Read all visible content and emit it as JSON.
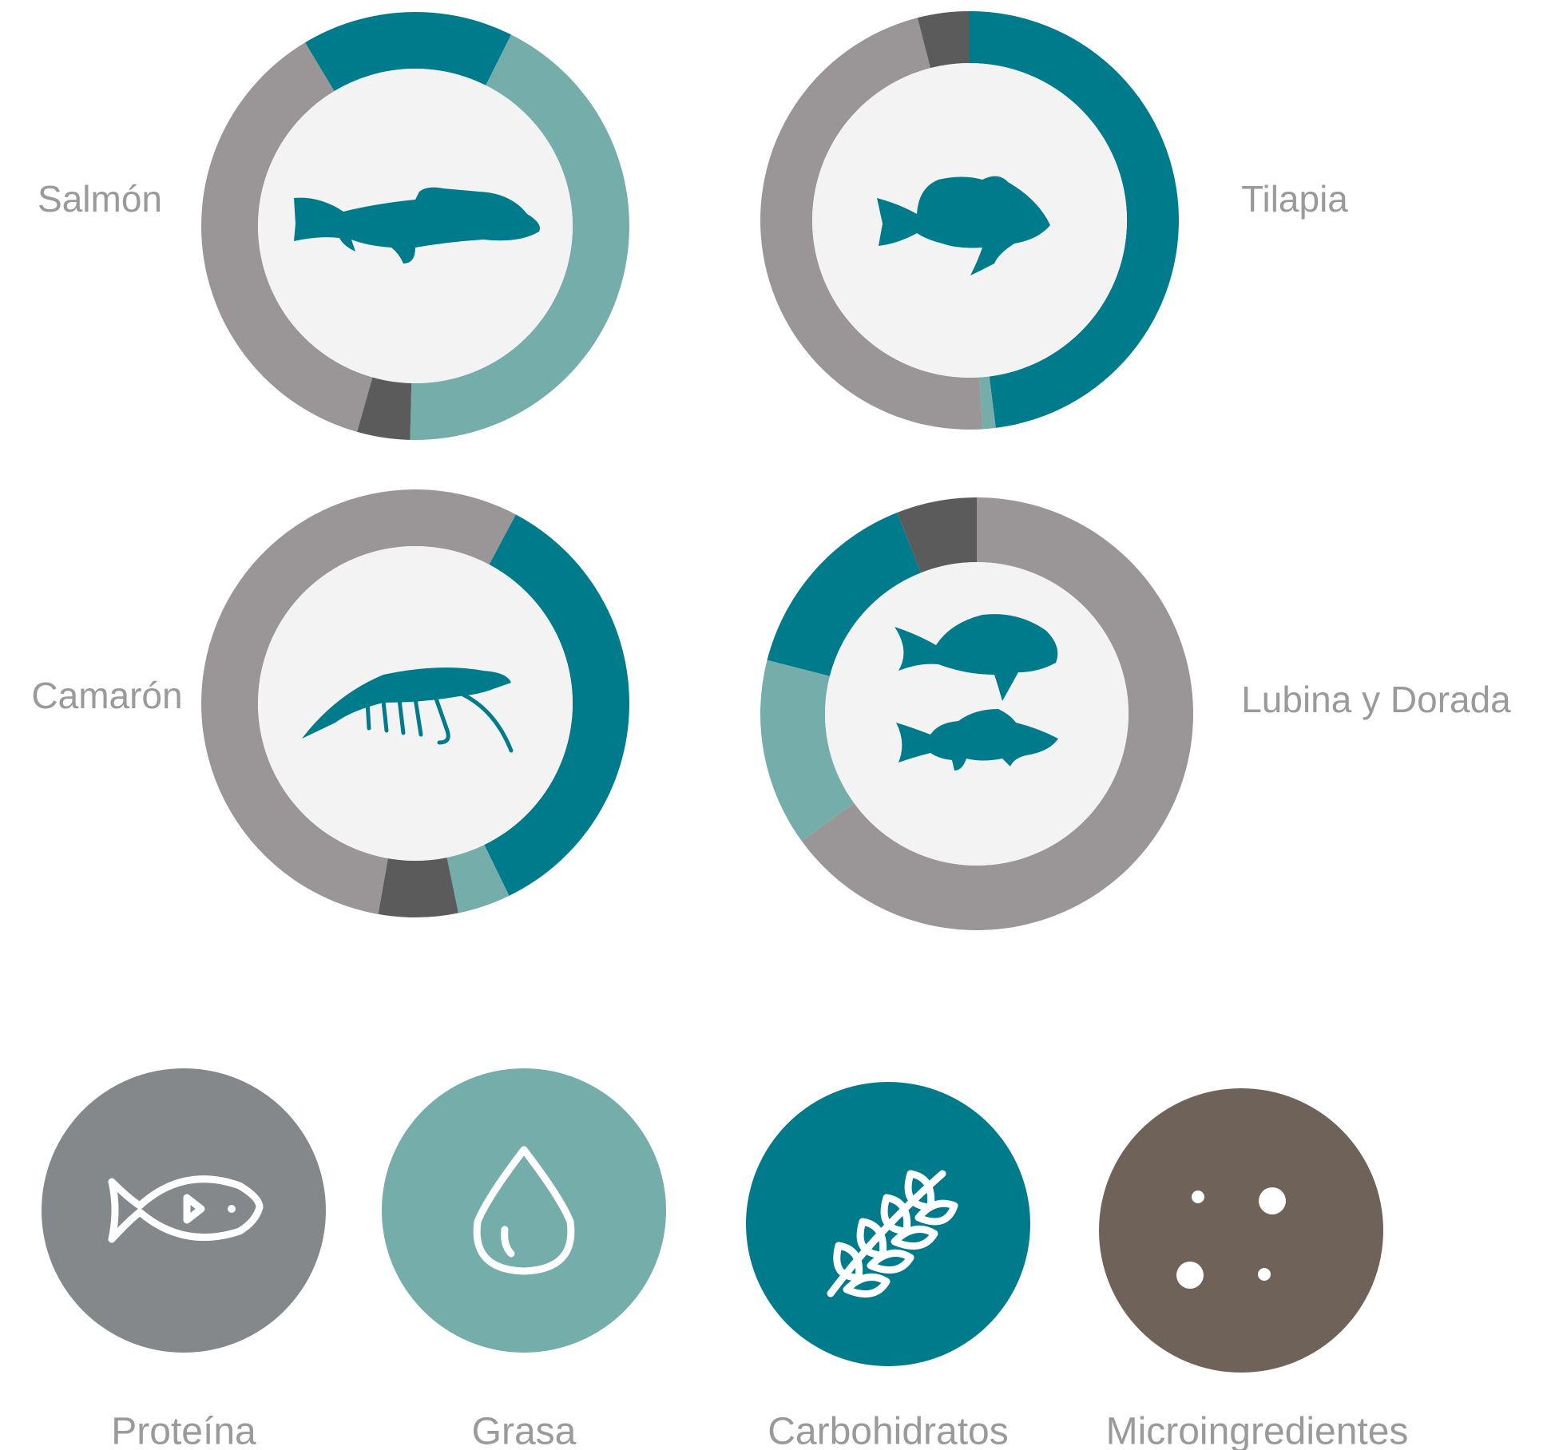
{
  "chart_data": {
    "type": "donut",
    "series": [
      {
        "name": "Salmón",
        "start_angle": -31,
        "values": [
          16,
          43,
          4,
          37
        ],
        "colors": [
          "#007b8c",
          "#74ada9",
          "#5b5b5b",
          "#9a9697"
        ]
      },
      {
        "name": "Tilapia",
        "start_angle": 0,
        "values": [
          48,
          1,
          47,
          4
        ],
        "colors": [
          "#007b8c",
          "#74ada9",
          "#9a9697",
          "#5b5b5b"
        ]
      },
      {
        "name": "Camarón",
        "start_angle": 28,
        "values": [
          35,
          4,
          6,
          55
        ],
        "colors": [
          "#007b8c",
          "#74ada9",
          "#5b5b5b",
          "#9a9697"
        ]
      },
      {
        "name": "Lubina y Dorada",
        "start_angle": 0,
        "values": [
          65,
          14,
          15,
          6
        ],
        "colors": [
          "#9a9697",
          "#74ada9",
          "#007b8c",
          "#5b5b5b"
        ]
      }
    ],
    "legend": [
      {
        "label": "Proteína",
        "color": "#85888a"
      },
      {
        "label": "Grasa",
        "color": "#74ada9"
      },
      {
        "label": "Carbohidratos",
        "color": "#007b8c"
      },
      {
        "label": "Microingredientes",
        "color": "#6e6259"
      }
    ]
  }
}
